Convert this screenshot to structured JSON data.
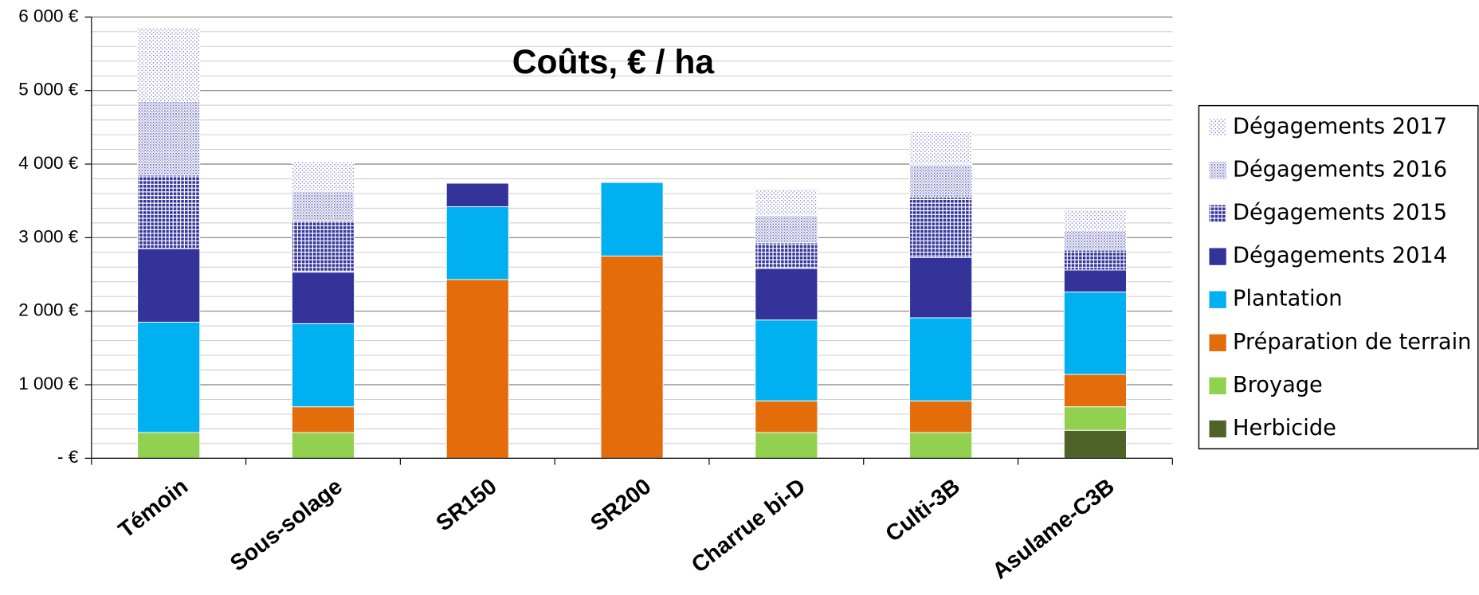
{
  "chart_data": {
    "type": "stacked-bar",
    "title": "Coûts, € / ha",
    "categories": [
      "Témoin",
      "Sous-solage",
      "SR150",
      "SR200",
      "Charrue bi-D",
      "Culti-3B",
      "Asulame-C3B"
    ],
    "series": [
      {
        "name": "Herbicide",
        "color": "#4f6228",
        "values": [
          0,
          0,
          0,
          0,
          0,
          0,
          380
        ]
      },
      {
        "name": "Broyage",
        "color": "#92d050",
        "values": [
          350,
          350,
          0,
          0,
          350,
          350,
          320
        ]
      },
      {
        "name": "Préparation de terrain",
        "color": "#e46c0a",
        "values": [
          0,
          350,
          2430,
          2750,
          430,
          430,
          440
        ]
      },
      {
        "name": "Plantation",
        "color": "#00b0f0",
        "values": [
          1500,
          1130,
          990,
          1000,
          1100,
          1130,
          1120
        ]
      },
      {
        "name": "Dégagements 2014",
        "color": "#333399",
        "values": [
          1000,
          700,
          320,
          0,
          700,
          820,
          300
        ]
      },
      {
        "name": "Dégagements 2015",
        "color": "#333399",
        "pattern": "dense",
        "values": [
          1000,
          700,
          0,
          0,
          350,
          820,
          270
        ]
      },
      {
        "name": "Dégagements 2016",
        "color": "#6666bb",
        "pattern": "medium",
        "values": [
          1000,
          400,
          0,
          0,
          370,
          440,
          270
        ]
      },
      {
        "name": "Dégagements 2017",
        "color": "#8888cc",
        "pattern": "sparse",
        "values": [
          1000,
          400,
          0,
          0,
          360,
          450,
          280
        ]
      }
    ],
    "ylim": [
      0,
      6000
    ],
    "yticks": [
      {
        "value": 0,
        "label": "- €"
      },
      {
        "value": 1000,
        "label": "1 000 €"
      },
      {
        "value": 2000,
        "label": "2 000 €"
      },
      {
        "value": 3000,
        "label": "3 000 €"
      },
      {
        "value": 4000,
        "label": "4 000 €"
      },
      {
        "value": 5000,
        "label": "5 000 €"
      },
      {
        "value": 6000,
        "label": "6 000 €"
      }
    ],
    "yminor": [
      200,
      400,
      600,
      800,
      1200,
      1400,
      1600,
      1800,
      2200,
      2400,
      2600,
      2800,
      3200,
      3400,
      3600,
      3800,
      4200,
      4400,
      4600,
      4800,
      5200,
      5400,
      5600,
      5800
    ],
    "grid": true,
    "legend": "right"
  }
}
